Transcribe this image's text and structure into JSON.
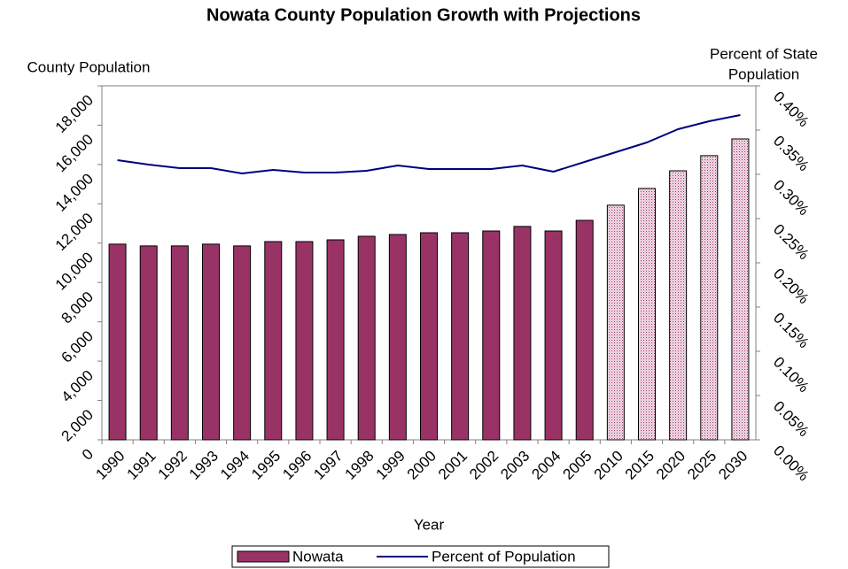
{
  "chart_data": {
    "type": "bar_line",
    "title": "Nowata County Population Growth with Projections",
    "ylabel": "County Population",
    "y2label": [
      "Percent of State",
      "Population"
    ],
    "xlabel": "Year",
    "categories": [
      "1990",
      "1991",
      "1992",
      "1993",
      "1994",
      "1995",
      "1996",
      "1997",
      "1998",
      "1999",
      "2000",
      "2001",
      "2002",
      "2003",
      "2004",
      "2005",
      "2010",
      "2015",
      "2020",
      "2025",
      "2030"
    ],
    "series": [
      {
        "name": "Nowata",
        "type": "bar",
        "color": "#993366",
        "fills": [
          "solid",
          "solid",
          "solid",
          "solid",
          "solid",
          "solid",
          "solid",
          "solid",
          "solid",
          "solid",
          "solid",
          "solid",
          "solid",
          "solid",
          "solid",
          "solid",
          "hatched",
          "hatched",
          "hatched",
          "hatched",
          "hatched"
        ],
        "values": [
          9950,
          9860,
          9860,
          9950,
          9860,
          10080,
          10080,
          10170,
          10350,
          10440,
          10530,
          10530,
          10620,
          10850,
          10620,
          11160,
          11930,
          12780,
          13680,
          14450,
          15300
        ]
      },
      {
        "name": "Percent of Population",
        "type": "line",
        "axis": "y2",
        "color": "#000080",
        "values": [
          0.316,
          0.311,
          0.307,
          0.307,
          0.301,
          0.305,
          0.302,
          0.302,
          0.304,
          0.31,
          0.306,
          0.306,
          0.306,
          0.31,
          0.303,
          0.314,
          0.325,
          0.336,
          0.351,
          0.36,
          0.367
        ]
      }
    ],
    "ylim": [
      0,
      18000
    ],
    "yticks": [
      0,
      {
        "value": 2000,
        "label": "2,000"
      },
      {
        "value": 4000,
        "label": "4,000"
      },
      {
        "value": 6000,
        "label": "6,000"
      },
      {
        "value": 8000,
        "label": "8,000"
      },
      {
        "value": 10000,
        "label": "10,000"
      },
      {
        "value": 12000,
        "label": "12,000"
      },
      {
        "value": 14000,
        "label": "14,000"
      },
      {
        "value": 16000,
        "label": "16,000"
      },
      {
        "value": 18000,
        "label": "18,000"
      }
    ],
    "y2lim": [
      0,
      0.4
    ],
    "y2ticks": [
      {
        "value": 0,
        "label": "0.00%"
      },
      {
        "value": 0.05,
        "label": "0.05%"
      },
      {
        "value": 0.1,
        "label": "0.10%"
      },
      {
        "value": 0.15,
        "label": "0.15%"
      },
      {
        "value": 0.2,
        "label": "0.20%"
      },
      {
        "value": 0.25,
        "label": "0.25%"
      },
      {
        "value": 0.3,
        "label": "0.30%"
      },
      {
        "value": 0.35,
        "label": "0.35%"
      },
      {
        "value": 0.4,
        "label": "0.40%"
      }
    ],
    "legend": "bottom"
  }
}
